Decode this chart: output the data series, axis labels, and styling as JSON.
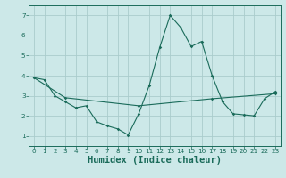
{
  "xlabel": "Humidex (Indice chaleur)",
  "ylabel": "",
  "bg_color": "#cce8e8",
  "grid_color": "#aacccc",
  "line_color": "#1a6b5a",
  "x_line1": [
    0,
    1,
    2,
    3,
    4,
    5,
    6,
    7,
    8,
    9,
    10,
    11,
    12,
    13,
    14,
    15,
    16,
    17,
    18,
    19,
    20,
    21,
    22,
    23
  ],
  "y_line1": [
    3.9,
    3.8,
    3.0,
    2.7,
    2.4,
    2.5,
    1.7,
    1.5,
    1.35,
    1.05,
    2.1,
    3.5,
    5.4,
    7.0,
    6.4,
    5.45,
    5.7,
    4.0,
    2.7,
    2.1,
    2.05,
    2.0,
    2.85,
    3.2
  ],
  "x_line2": [
    0,
    3,
    10,
    17,
    23
  ],
  "y_line2": [
    3.9,
    2.9,
    2.5,
    2.85,
    3.1
  ],
  "xlim": [
    -0.5,
    23.5
  ],
  "ylim": [
    0.5,
    7.5
  ],
  "yticks": [
    1,
    2,
    3,
    4,
    5,
    6,
    7
  ],
  "xticks": [
    0,
    1,
    2,
    3,
    4,
    5,
    6,
    7,
    8,
    9,
    10,
    11,
    12,
    13,
    14,
    15,
    16,
    17,
    18,
    19,
    20,
    21,
    22,
    23
  ],
  "tick_fontsize": 5.2,
  "xlabel_fontsize": 7.5,
  "xlabel_fontweight": "bold"
}
